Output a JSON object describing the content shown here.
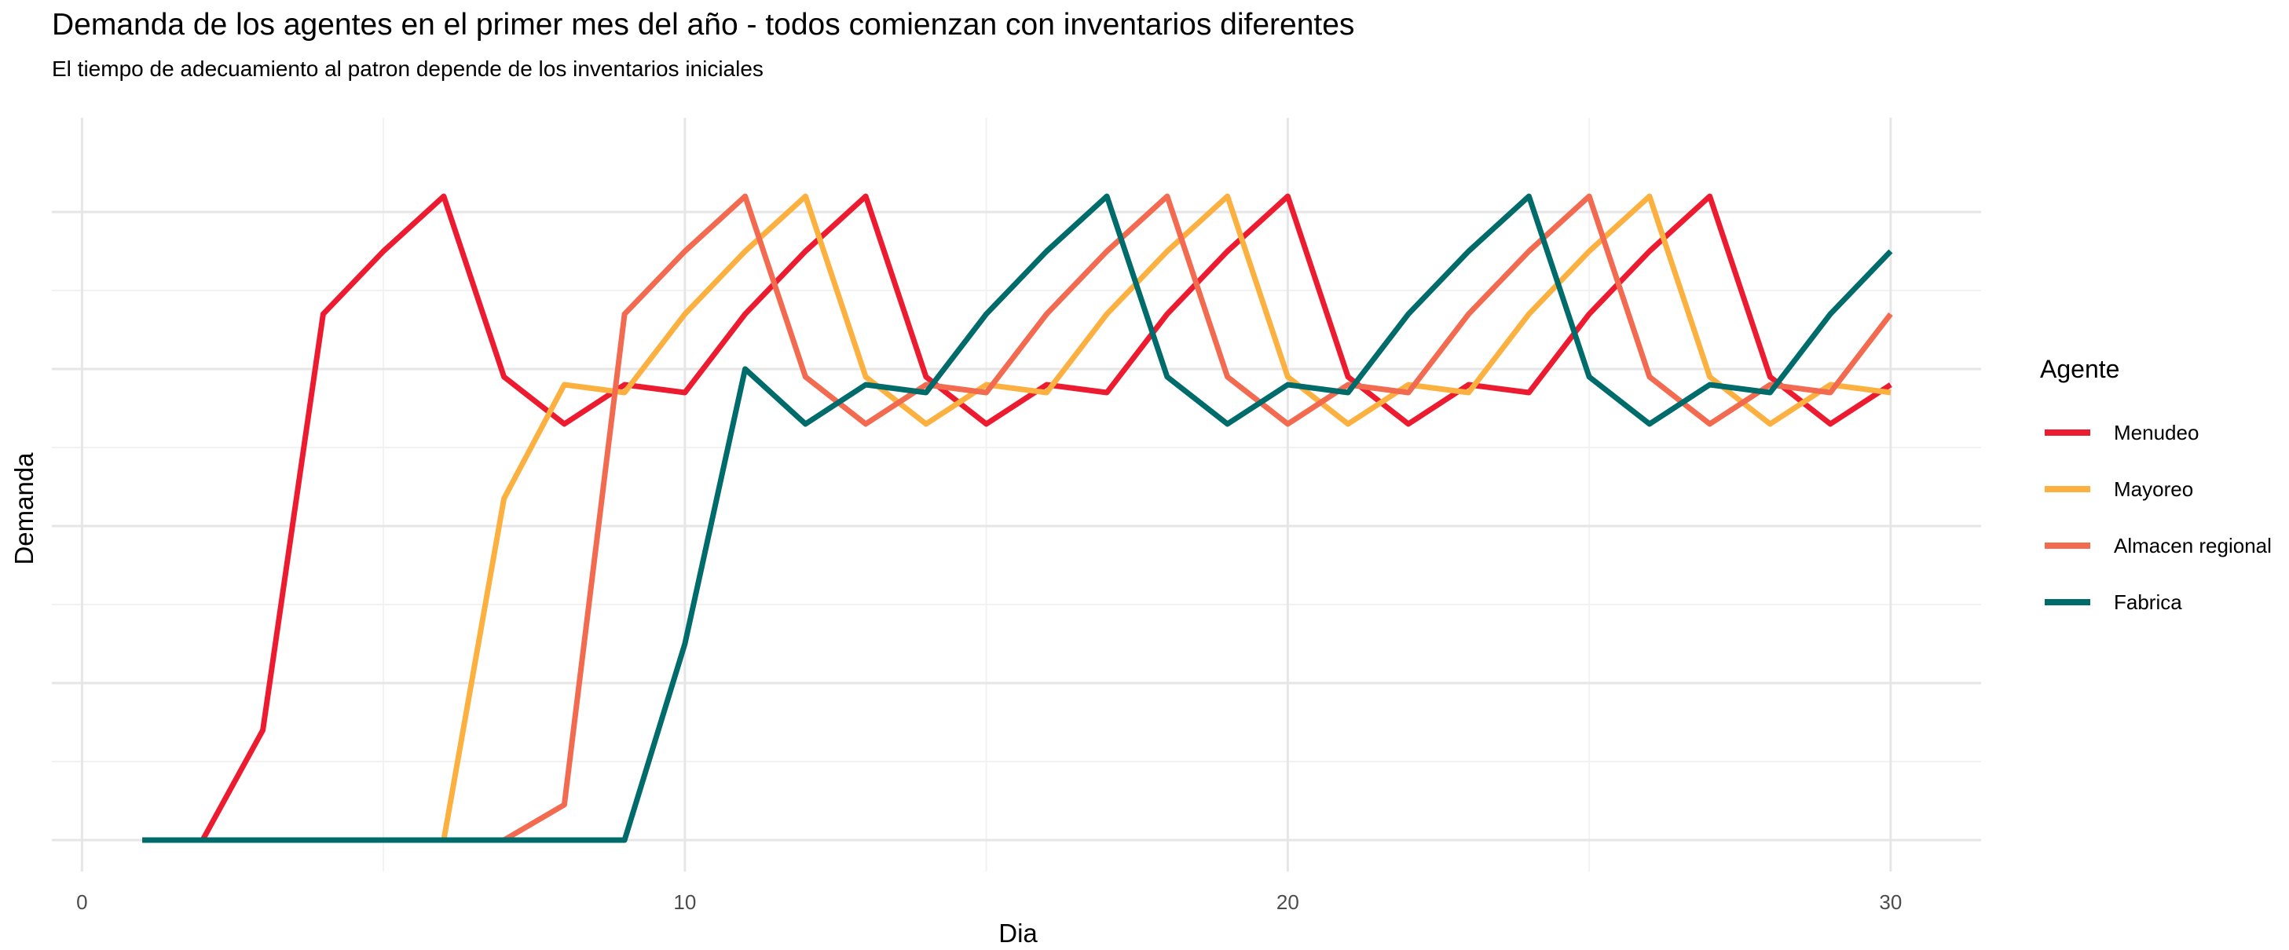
{
  "chart_data": {
    "type": "line",
    "title": "Demanda de los agentes en el primer mes del año - todos comienzan con inventarios diferentes",
    "subtitle": "El tiempo de adecuamiento al patron depende de los inventarios iniciales",
    "xlabel": "Dia",
    "ylabel": "Demanda",
    "xlim": [
      -0.5,
      31.5
    ],
    "ylim": [
      -0.4,
      9.2
    ],
    "x_ticks": [
      0,
      10,
      20,
      30
    ],
    "x_tick_labels": [
      "0",
      "10",
      "20",
      "30"
    ],
    "y_ticks_shown": false,
    "grid": true,
    "legend_title": "Agente",
    "legend_position": "right",
    "x": [
      1,
      2,
      3,
      4,
      5,
      6,
      7,
      8,
      9,
      10,
      11,
      12,
      13,
      14,
      15,
      16,
      17,
      18,
      19,
      20,
      21,
      22,
      23,
      24,
      25,
      26,
      27,
      28,
      29,
      30
    ],
    "series": [
      {
        "name": "Menudeo",
        "color": "#ED1B2F",
        "values": [
          0,
          0,
          1.4,
          6.7,
          7.5,
          8.2,
          5.9,
          5.3,
          5.8,
          5.7,
          6.7,
          7.5,
          8.2,
          5.9,
          5.3,
          5.8,
          5.7,
          6.7,
          7.5,
          8.2,
          5.9,
          5.3,
          5.8,
          5.7,
          6.7,
          7.5,
          8.2,
          5.9,
          5.3,
          5.8
        ]
      },
      {
        "name": "Mayoreo",
        "color": "#FBB040",
        "values": [
          0,
          0,
          0,
          0,
          0,
          0,
          4.35,
          5.8,
          5.7,
          6.7,
          7.5,
          8.2,
          5.9,
          5.3,
          5.8,
          5.7,
          6.7,
          7.5,
          8.2,
          5.9,
          5.3,
          5.8,
          5.7,
          6.7,
          7.5,
          8.2,
          5.9,
          5.3,
          5.8,
          5.7
        ]
      },
      {
        "name": "Almacen regional",
        "color": "#F26A4F",
        "values": [
          0,
          0,
          0,
          0,
          0,
          0,
          0,
          0.45,
          6.7,
          7.5,
          8.2,
          5.9,
          5.3,
          5.8,
          5.7,
          6.7,
          7.5,
          8.2,
          5.9,
          5.3,
          5.8,
          5.7,
          6.7,
          7.5,
          8.2,
          5.9,
          5.3,
          5.8,
          5.7,
          6.7
        ]
      },
      {
        "name": "Fabrica",
        "color": "#006B6B",
        "values": [
          0,
          0,
          0,
          0,
          0,
          0,
          0,
          0,
          0,
          2.5,
          6.0,
          5.3,
          5.8,
          5.7,
          6.7,
          7.5,
          8.2,
          5.9,
          5.3,
          5.8,
          5.7,
          6.7,
          7.5,
          8.2,
          5.9,
          5.3,
          5.8,
          5.7,
          6.7,
          7.5
        ]
      }
    ]
  }
}
